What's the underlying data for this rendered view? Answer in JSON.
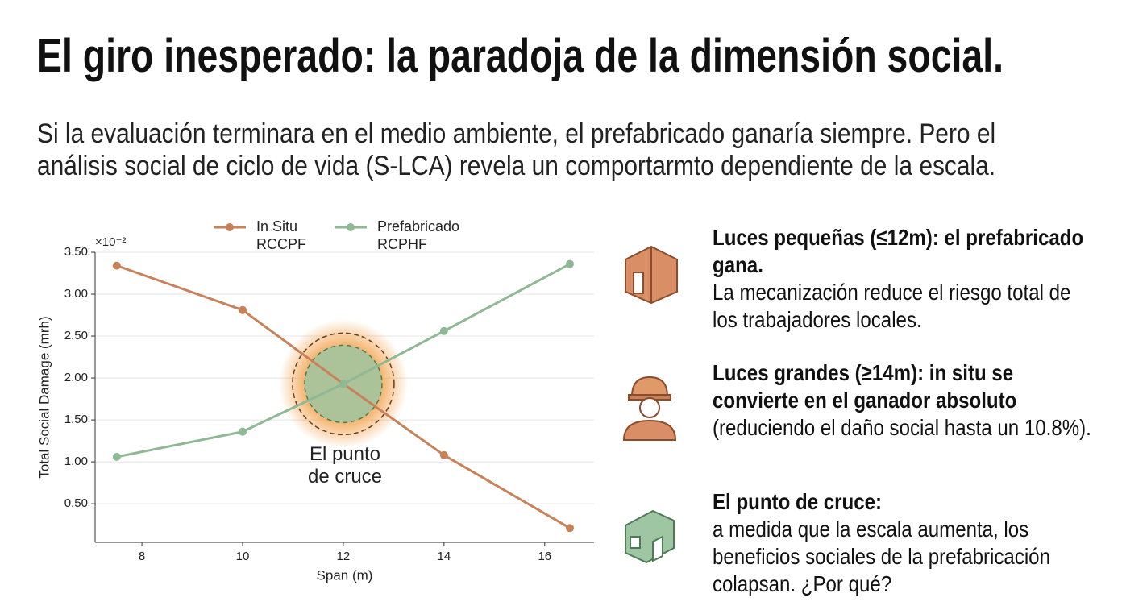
{
  "title": "El giro inesperado: la paradoja de la dimensión social.",
  "subtitle": "Si la evaluación terminara en el medio ambiente, el prefabricado ganaría siempre. Pero el análisis social de ciclo de vida (S-LCA) revela un comportarmto dependiente de la escala.",
  "chart_data": {
    "type": "line",
    "x_label": "Span (m)",
    "y_label": "Total Social Damage (mrh)",
    "y_multiplier": "×10⁻²",
    "annotation": "El punto\nde cruce",
    "x": [
      7.5,
      10,
      12,
      14,
      16.5
    ],
    "series": [
      {
        "name": "In Situ\nRCCPF",
        "color": "#c8825a",
        "values": [
          3.34,
          2.81,
          1.93,
          1.08,
          0.21
        ]
      },
      {
        "name": "Prefabricado\nRCPHF",
        "color": "#8fb995",
        "values": [
          1.06,
          1.36,
          1.93,
          2.56,
          3.36
        ]
      }
    ],
    "xlim": [
      7.07,
      16.98
    ],
    "xticks": [
      8,
      10,
      12,
      14,
      16
    ],
    "ylim": [
      0.04,
      3.5
    ],
    "yticks": [
      {
        "value": 0.5,
        "label": "0.50"
      },
      {
        "value": 1.0,
        "label": "1.00"
      },
      {
        "value": 1.5,
        "label": "1.50"
      },
      {
        "value": 2.0,
        "label": "2.00"
      },
      {
        "value": 2.5,
        "label": "2.50"
      },
      {
        "value": 3.0,
        "label": "3.00"
      },
      {
        "value": 3.5,
        "label": "3.50"
      }
    ],
    "grid": true
  },
  "points": [
    {
      "heading": "Luces pequeñas (≤12m): el prefabricado gana.",
      "body": "La mecanización reduce el riesgo total de los trabajadores locales."
    },
    {
      "heading": "Luces grandes (≥14m): in situ se convierte en el ganador absoluto",
      "body": "(reduciendo el daño social hasta un 10.8%)."
    },
    {
      "heading": "El punto de cruce:",
      "body": "a medida que la escala aumenta, los beneficios sociales de la prefabricación colapsan. ¿Por qué?"
    }
  ]
}
